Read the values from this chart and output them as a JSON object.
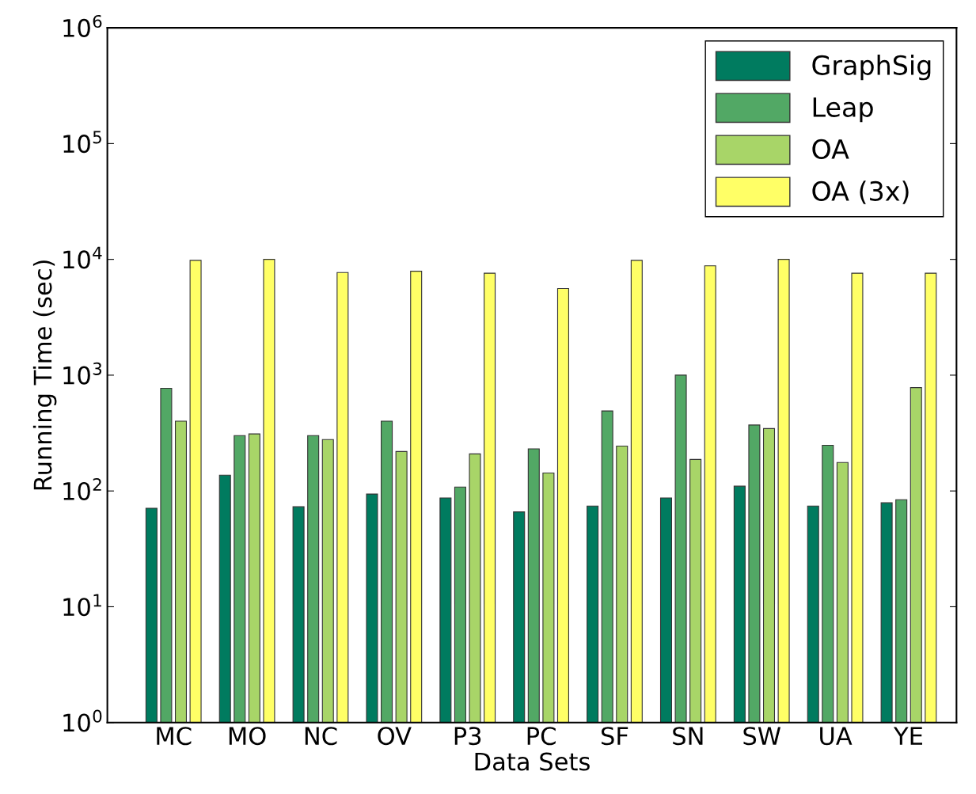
{
  "chart_data": {
    "type": "bar",
    "xlabel": "Data Sets",
    "ylabel": "Running Time (sec)",
    "categories": [
      "MC",
      "MO",
      "NC",
      "OV",
      "P3",
      "PC",
      "SF",
      "SN",
      "SW",
      "UA",
      "YE"
    ],
    "series": [
      {
        "name": "GraphSig",
        "color": "#007b5f",
        "values": [
          70,
          136,
          72,
          93,
          86,
          65,
          73,
          86,
          109,
          73,
          78
        ]
      },
      {
        "name": "Leap",
        "color": "#52a865",
        "values": [
          770,
          300,
          300,
          400,
          107,
          230,
          490,
          1000,
          370,
          247,
          83
        ]
      },
      {
        "name": "OA",
        "color": "#a8d568",
        "values": [
          400,
          310,
          277,
          218,
          208,
          142,
          243,
          186,
          345,
          175,
          780
        ]
      },
      {
        "name": "OA (3x)",
        "color": "#ffff66",
        "values": [
          9800,
          10000,
          7700,
          7900,
          7600,
          5600,
          9800,
          8800,
          10000,
          7600,
          7600
        ]
      }
    ],
    "log": "y",
    "ylim": [
      1,
      1000000
    ],
    "yticks": [
      {
        "value": 1,
        "label": "10$^{0}$"
      },
      {
        "value": 10,
        "label": "10$^{1}$"
      },
      {
        "value": 100,
        "label": "10$^{2}$"
      },
      {
        "value": 1000,
        "label": "10$^{3}$"
      },
      {
        "value": 10000,
        "label": "10$^{4}$"
      },
      {
        "value": 100000,
        "label": "10$^{5}$"
      },
      {
        "value": 1000000,
        "label": "10$^{6}$"
      }
    ],
    "legend": "top right",
    "grid": false
  }
}
